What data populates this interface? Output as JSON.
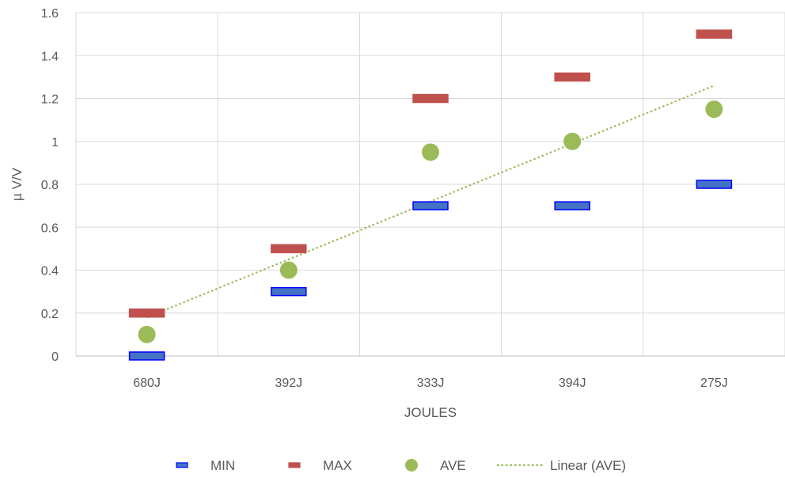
{
  "chart_data": {
    "type": "scatter",
    "categories": [
      "680J",
      "392J",
      "333J",
      "394J",
      "275J"
    ],
    "xlabel": "JOULES",
    "ylabel": "µ V/V",
    "ylim": [
      0,
      1.6
    ],
    "yticks": [
      "0",
      "0.2",
      "0.4",
      "0.6",
      "0.8",
      "1",
      "1.2",
      "1.4",
      "1.6"
    ],
    "grid": true,
    "legend_position": "bottom",
    "series": [
      {
        "name": "MIN",
        "marker": "dash",
        "color": "#4472C4",
        "border": "#0000FF",
        "values": [
          0,
          0.3,
          0.7,
          0.7,
          0.8
        ]
      },
      {
        "name": "MAX",
        "marker": "dash",
        "color": "#C0504D",
        "border": "#C0504D",
        "values": [
          0.2,
          0.5,
          1.2,
          1.3,
          1.5
        ]
      },
      {
        "name": "AVE",
        "marker": "circle",
        "color": "#9BBB59",
        "border": "#9BBB59",
        "values": [
          0.1,
          0.4,
          0.95,
          1.0,
          1.15
        ]
      }
    ],
    "trendline": {
      "name": "Linear (AVE)",
      "of": "AVE",
      "style": "dotted",
      "color": "#9BBB59"
    }
  }
}
